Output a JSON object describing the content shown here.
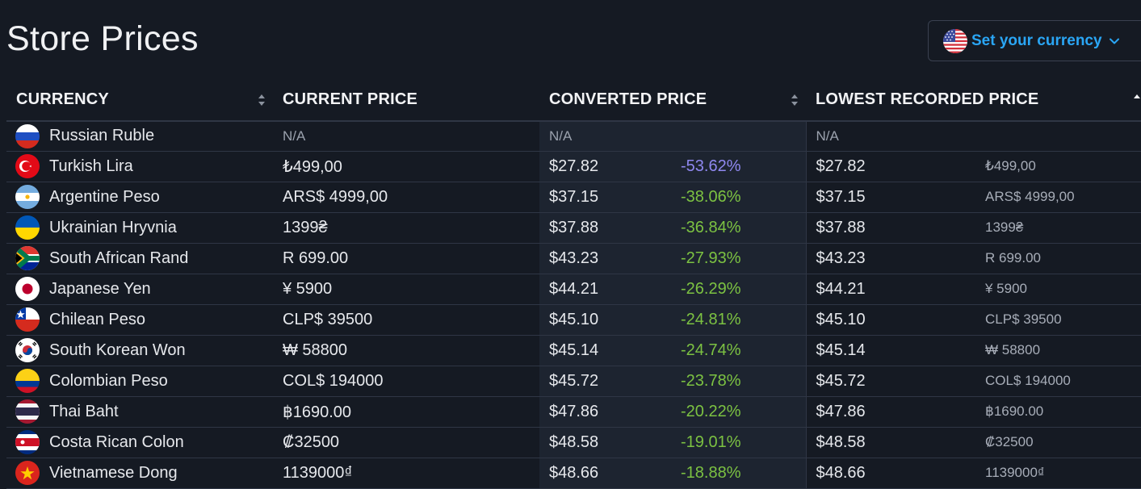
{
  "header": {
    "title": "Store Prices",
    "currency_button": {
      "label": "Set your currency",
      "flag_icon": "us-flag-icon",
      "chevron_icon": "chevron-down-icon"
    }
  },
  "table": {
    "columns": {
      "currency": "CURRENCY",
      "current_price": "CURRENT PRICE",
      "converted_price": "CONVERTED PRICE",
      "lowest_recorded_price": "LOWEST RECORDED PRICE"
    },
    "rows": [
      {
        "name": "Russian Ruble",
        "flag": "ru",
        "current": "N/A",
        "converted": "N/A",
        "pct": "",
        "lowest": "N/A",
        "lowest_orig": ""
      },
      {
        "name": "Turkish Lira",
        "flag": "tr",
        "current": "₺499,00",
        "converted": "$27.82",
        "pct": "-53.62%",
        "lowest": "$27.82",
        "lowest_orig": "₺499,00"
      },
      {
        "name": "Argentine Peso",
        "flag": "ar",
        "current": "ARS$ 4999,00",
        "converted": "$37.15",
        "pct": "-38.06%",
        "lowest": "$37.15",
        "lowest_orig": "ARS$ 4999,00"
      },
      {
        "name": "Ukrainian Hryvnia",
        "flag": "ua",
        "current": "1399₴",
        "converted": "$37.88",
        "pct": "-36.84%",
        "lowest": "$37.88",
        "lowest_orig": "1399₴"
      },
      {
        "name": "South African Rand",
        "flag": "za",
        "current": "R 699.00",
        "converted": "$43.23",
        "pct": "-27.93%",
        "lowest": "$43.23",
        "lowest_orig": "R 699.00"
      },
      {
        "name": "Japanese Yen",
        "flag": "jp",
        "current": "¥ 5900",
        "converted": "$44.21",
        "pct": "-26.29%",
        "lowest": "$44.21",
        "lowest_orig": "¥ 5900"
      },
      {
        "name": "Chilean Peso",
        "flag": "cl",
        "current": "CLP$ 39500",
        "converted": "$45.10",
        "pct": "-24.81%",
        "lowest": "$45.10",
        "lowest_orig": "CLP$ 39500"
      },
      {
        "name": "South Korean Won",
        "flag": "kr",
        "current": "₩ 58800",
        "converted": "$45.14",
        "pct": "-24.74%",
        "lowest": "$45.14",
        "lowest_orig": "₩ 58800"
      },
      {
        "name": "Colombian Peso",
        "flag": "co",
        "current": "COL$ 194000",
        "converted": "$45.72",
        "pct": "-23.78%",
        "lowest": "$45.72",
        "lowest_orig": "COL$ 194000"
      },
      {
        "name": "Thai Baht",
        "flag": "th",
        "current": "฿1690.00",
        "converted": "$47.86",
        "pct": "-20.22%",
        "lowest": "$47.86",
        "lowest_orig": "฿1690.00"
      },
      {
        "name": "Costa Rican Colon",
        "flag": "cr",
        "current": "₡32500",
        "converted": "$48.58",
        "pct": "-19.01%",
        "lowest": "$48.58",
        "lowest_orig": "₡32500"
      },
      {
        "name": "Vietnamese Dong",
        "flag": "vn",
        "current": "1139000₫",
        "converted": "$48.66",
        "pct": "-18.88%",
        "lowest": "$48.66",
        "lowest_orig": "1139000₫"
      }
    ]
  },
  "colors": {
    "background": "#151a23",
    "accent_blue": "#2aa6f5",
    "discount_green": "#7cc242",
    "discount_purple": "#8f88f0"
  }
}
